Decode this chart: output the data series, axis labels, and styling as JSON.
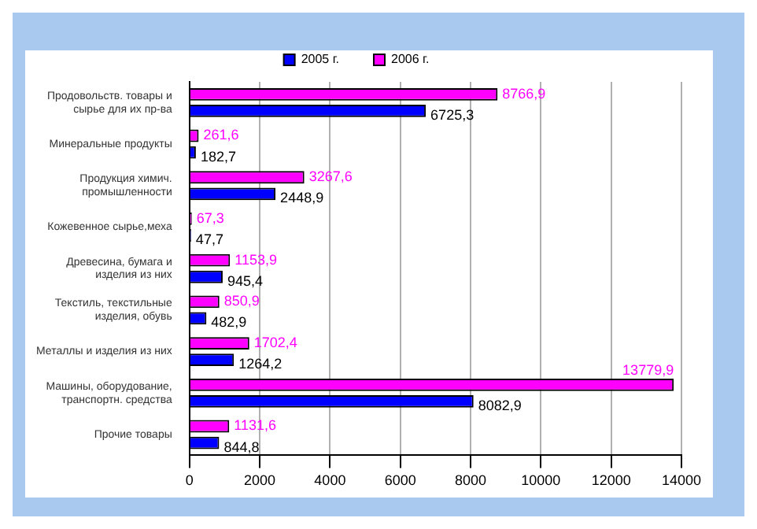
{
  "chart_data": {
    "type": "bar",
    "orientation": "horizontal",
    "categories": [
      "Продовольств. товары и сырье для их пр-ва",
      "Минеральные продукты",
      "Продукция химич. промышленности",
      "Кожевенное сырье,меха",
      "Древесина, бумага и изделия из них",
      "Текстиль, текстильные изделия, обувь",
      "Металлы и изделия из них",
      "Машины, оборудование, транспортн. средства",
      "Прочие товары"
    ],
    "series": [
      {
        "name": "2005 г.",
        "color": "#0000ff",
        "values": [
          6725.3,
          182.7,
          2448.9,
          47.7,
          945.4,
          482.9,
          1264.2,
          8082.9,
          844.8
        ],
        "value_labels": [
          "6725,3",
          "182,7",
          "2448,9",
          "47,7",
          "945,4",
          "482,9",
          "1264,2",
          "8082,9",
          "844,8"
        ]
      },
      {
        "name": "2006 г.",
        "color": "#ff00ff",
        "values": [
          8766.9,
          261.6,
          3267.6,
          67.3,
          1153.9,
          850.9,
          1702.4,
          13779.9,
          1131.6
        ],
        "value_labels": [
          "8766,9",
          "261,6",
          "3267,6",
          "67,3",
          "1153,9",
          "850,9",
          "1702,4",
          "13779,9",
          "1131,6"
        ]
      }
    ],
    "xlim": [
      0,
      14000
    ],
    "xticks": [
      0,
      2000,
      4000,
      6000,
      8000,
      10000,
      12000,
      14000
    ],
    "grid": "x",
    "legend": "top"
  }
}
